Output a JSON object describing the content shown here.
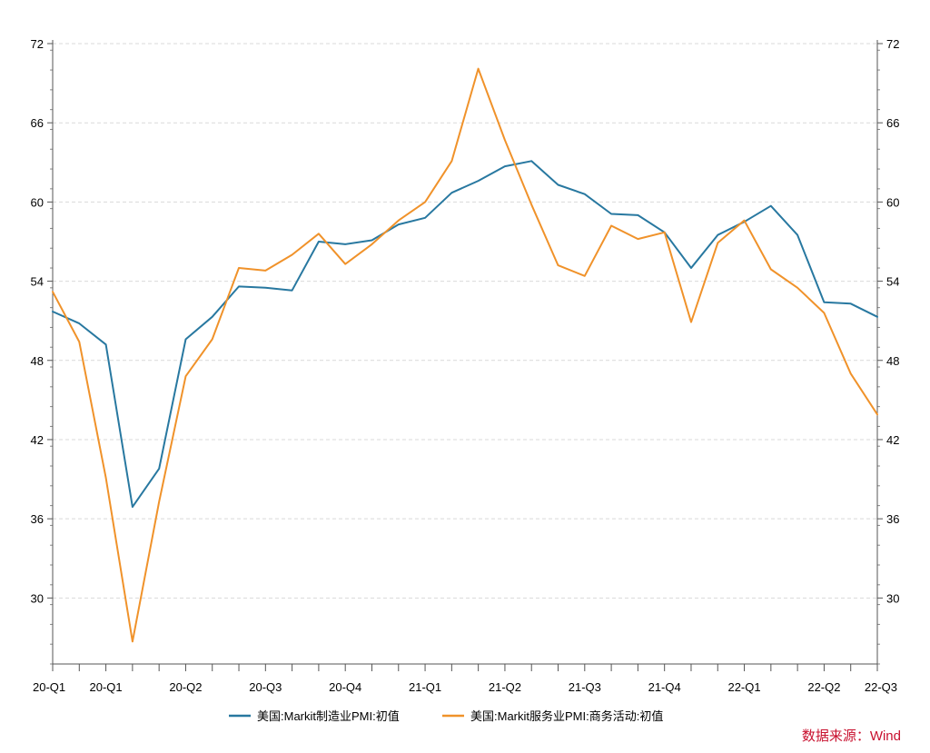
{
  "chart_data": {
    "type": "line",
    "x_tick_labels": [
      "20-Q1",
      "20-Q1",
      "20-Q2",
      "20-Q3",
      "20-Q4",
      "21-Q1",
      "21-Q2",
      "21-Q3",
      "21-Q4",
      "22-Q1",
      "22-Q2",
      "22-Q3"
    ],
    "y_ticks": [
      30,
      36,
      42,
      48,
      54,
      60,
      66,
      72
    ],
    "ylim": [
      25,
      72
    ],
    "grid": "horizontal dashed",
    "legend_position": "bottom",
    "series": [
      {
        "name": "美国:Markit制造业PMI:初值",
        "color": "#2878a0",
        "values": [
          51.7,
          50.8,
          49.2,
          36.9,
          39.8,
          49.6,
          51.3,
          53.6,
          53.5,
          53.3,
          57.0,
          56.8,
          57.1,
          58.3,
          58.8,
          60.7,
          61.6,
          62.7,
          63.1,
          61.3,
          60.6,
          59.1,
          59.0,
          57.7,
          55.0,
          57.5,
          58.5,
          59.7,
          57.5,
          52.4,
          52.3,
          51.3
        ]
      },
      {
        "name": "美国:Markit服务业PMI:商务活动:初值",
        "color": "#f0922a",
        "values": [
          53.2,
          49.4,
          39.1,
          26.7,
          37.3,
          46.8,
          49.6,
          55.0,
          54.8,
          56.0,
          57.6,
          55.3,
          56.8,
          58.6,
          60.0,
          63.1,
          70.1,
          64.7,
          59.8,
          55.2,
          54.4,
          58.2,
          57.2,
          57.7,
          50.9,
          56.9,
          58.6,
          54.9,
          53.5,
          51.6,
          47.0,
          43.9
        ]
      }
    ],
    "source_note": "数据来源：Wind"
  }
}
